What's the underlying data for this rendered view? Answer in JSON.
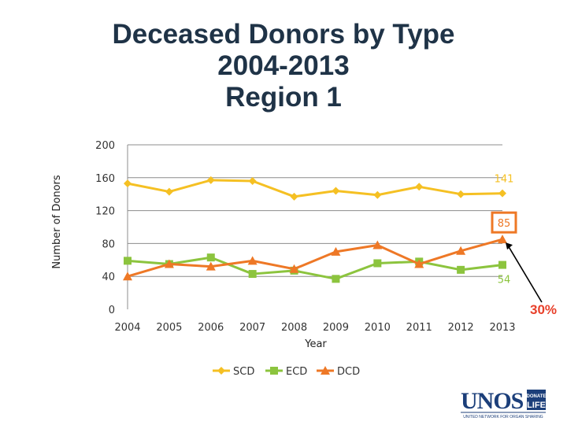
{
  "title_lines": [
    "Deceased Donors by Type",
    "2004-2013",
    "Region 1"
  ],
  "chart_data": {
    "type": "line",
    "title": "Deceased Donors by Type 2004-2013 Region 1",
    "xlabel": "Year",
    "ylabel": "Number of Donors",
    "categories": [
      "2004",
      "2005",
      "2006",
      "2007",
      "2008",
      "2009",
      "2010",
      "2011",
      "2012",
      "2013"
    ],
    "ylim": [
      0,
      200
    ],
    "yticks": [
      0,
      40,
      80,
      120,
      160,
      200
    ],
    "grid": "horizontal",
    "legend_position": "bottom",
    "series": [
      {
        "name": "SCD",
        "values": [
          153,
          143,
          157,
          156,
          137,
          144,
          139,
          149,
          140,
          141
        ],
        "color": "#f5c023",
        "marker": "diamond"
      },
      {
        "name": "ECD",
        "values": [
          59,
          55,
          63,
          43,
          47,
          37,
          56,
          58,
          48,
          54
        ],
        "color": "#8cc43e",
        "marker": "square"
      },
      {
        "name": "DCD",
        "values": [
          40,
          55,
          52,
          59,
          49,
          70,
          78,
          55,
          71,
          85
        ],
        "color": "#ee7826",
        "marker": "triangle"
      }
    ],
    "annotations": [
      {
        "series": "SCD",
        "year": "2013",
        "text": "141",
        "color": "#f5c023"
      },
      {
        "series": "DCD",
        "year": "2013",
        "text": "85",
        "color": "#ee7826",
        "boxed": true
      },
      {
        "series": "ECD",
        "year": "2013",
        "text": "54",
        "color": "#8cc43e"
      },
      {
        "text": "30%",
        "color": "#e8402a"
      }
    ]
  },
  "logo": {
    "name": "UNOS",
    "badge_line1": "DONATE",
    "badge_line2": "LIFE",
    "tagline": "UNITED NETWORK FOR ORGAN SHARING",
    "color": "#1c3f7a"
  }
}
